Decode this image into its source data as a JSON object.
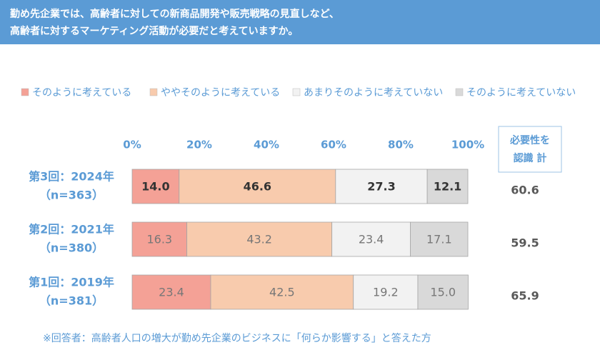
{
  "chart_data": {
    "type": "stacked_bar_h",
    "title": [
      "勤め先企業では、高齢者に対しての新商品開発や販売戦略の見直しなど、",
      "高齢者に対するマーケティング活動が必要だと考えていますか。"
    ],
    "categories": [
      [
        "第3回：2024年",
        "（n=363）"
      ],
      [
        "第2回：2021年",
        "（n=380）"
      ],
      [
        "第1回：2019年",
        "（n=381）"
      ]
    ],
    "series": [
      {
        "name": "そのように考えている",
        "color": "#f4a196",
        "values": [
          14.0,
          16.3,
          23.4
        ],
        "value_labels": [
          "14.0",
          "16.3",
          "23.4"
        ]
      },
      {
        "name": "ややそのように考えている",
        "color": "#f8cbad",
        "values": [
          46.6,
          43.2,
          42.5
        ],
        "value_labels": [
          "46.6",
          "43.2",
          "42.5"
        ]
      },
      {
        "name": "あまりそのように考えていない",
        "color": "#f2f2f2",
        "values": [
          27.3,
          23.4,
          19.2
        ],
        "value_labels": [
          "27.3",
          "23.4",
          "19.2"
        ]
      },
      {
        "name": "そのように考えていない",
        "color": "#d9d9d9",
        "values": [
          12.1,
          17.1,
          15.0
        ],
        "value_labels": [
          "12.1",
          "17.1",
          "15.0"
        ]
      }
    ],
    "label_colors": [
      "#333333",
      "#777777",
      "#777777"
    ],
    "xlim": [
      0,
      100
    ],
    "xticks": [
      {
        "value": 0,
        "label": "0%"
      },
      {
        "value": 20,
        "label": "20%"
      },
      {
        "value": 40,
        "label": "40%"
      },
      {
        "value": 60,
        "label": "60%"
      },
      {
        "value": 80,
        "label": "80%"
      },
      {
        "value": 100,
        "label": "100%"
      }
    ],
    "totals": {
      "label": [
        "必要性を",
        "認識 計"
      ],
      "values": [
        60.6,
        59.5,
        65.9
      ]
    },
    "note": "※回答者：高齢者人口の増大が勤め先企業のビジネスに「何らか影響する」と答えた方"
  }
}
